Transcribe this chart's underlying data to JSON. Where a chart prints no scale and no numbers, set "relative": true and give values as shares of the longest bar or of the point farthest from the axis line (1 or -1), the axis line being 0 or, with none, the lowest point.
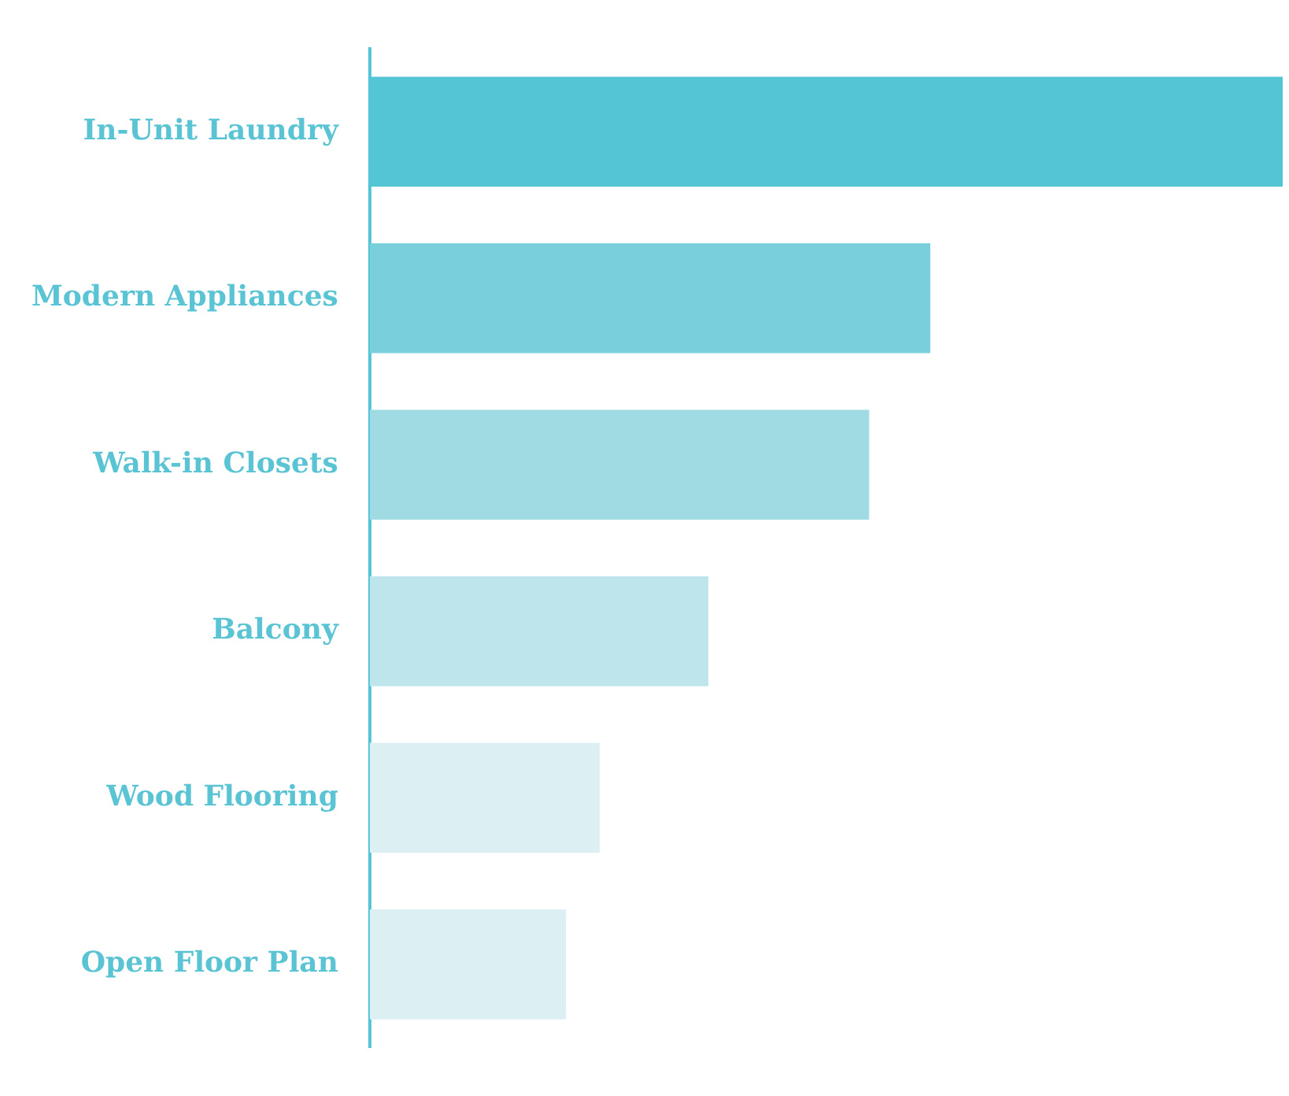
{
  "chart_data": {
    "type": "bar",
    "orientation": "horizontal",
    "relative": true,
    "categories": [
      "In-Unit Laundry",
      "Modern Appliances",
      "Walk-in Closets",
      "Balcony",
      "Wood Flooring",
      "Open Floor Plan"
    ],
    "values": [
      1,
      0.614,
      0.547,
      0.371,
      0.252,
      0.215
    ],
    "colors": [
      "#54c5d4",
      "#7acfdc",
      "#a0dbe4",
      "#bfe5ec",
      "#dcf0f3",
      "#dcf0f3"
    ]
  }
}
